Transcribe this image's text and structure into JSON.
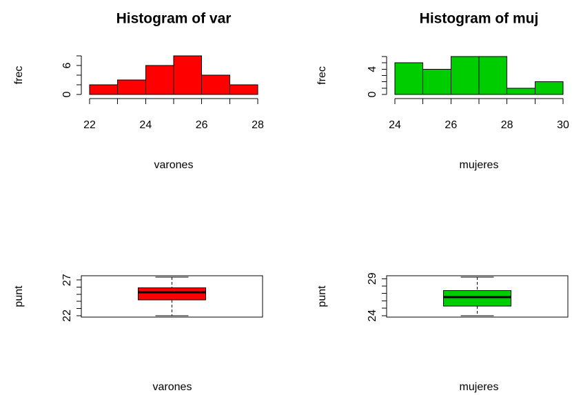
{
  "chart_data": [
    {
      "type": "histogram",
      "title": "Histogram of var",
      "xlabel": "varones",
      "ylabel": "frec",
      "bins": [
        22,
        23,
        24,
        25,
        26,
        27,
        28
      ],
      "values": [
        2,
        3,
        6,
        8,
        4,
        2
      ],
      "color": "#ff0000",
      "xlim": [
        22,
        28
      ],
      "xticks": [
        22,
        24,
        26,
        28
      ],
      "xminor_ticks": [
        23,
        25,
        27
      ],
      "ylim": [
        0,
        8
      ],
      "yticks": [
        0,
        6
      ],
      "yminor_ticks": [
        2,
        4,
        8
      ]
    },
    {
      "type": "histogram",
      "title": "Histogram of muj",
      "xlabel": "mujeres",
      "ylabel": "frec",
      "bins": [
        24,
        25,
        26,
        27,
        28,
        29,
        30
      ],
      "values": [
        5,
        4,
        6,
        6,
        1,
        2
      ],
      "color": "#00cd00",
      "xlim": [
        24,
        30
      ],
      "xticks": [
        24,
        26,
        28,
        30
      ],
      "xminor_ticks": [
        25,
        27,
        29
      ],
      "ylim": [
        0,
        6
      ],
      "yticks": [
        0,
        4
      ],
      "yminor_ticks": [
        1,
        2,
        3,
        5,
        6
      ]
    },
    {
      "type": "box",
      "xlabel": "varones",
      "ylabel": "punt",
      "min": 22,
      "q1": 24.2,
      "median": 25.3,
      "q3": 25.9,
      "max": 27.4,
      "color": "#ff0000",
      "ylim": [
        21.8,
        27.6
      ],
      "yticks": [
        22,
        27
      ],
      "yminor_ticks": [
        23,
        24,
        25,
        26
      ]
    },
    {
      "type": "box",
      "xlabel": "mujeres",
      "ylabel": "punt",
      "min": 24,
      "q1": 25.3,
      "median": 26.5,
      "q3": 27.4,
      "max": 29.2,
      "color": "#00cd00",
      "ylim": [
        23.8,
        29.4
      ],
      "yticks": [
        24,
        29
      ],
      "yminor_ticks": [
        25,
        26,
        27,
        28
      ]
    }
  ]
}
